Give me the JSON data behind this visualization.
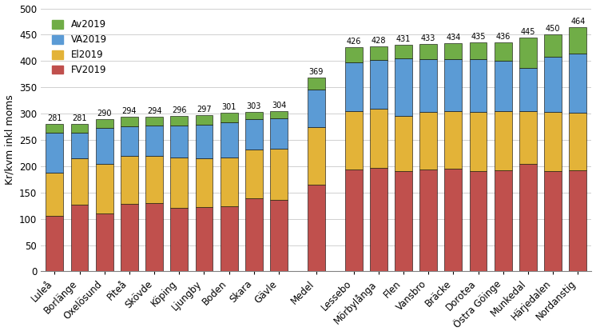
{
  "categories": [
    "Luleå",
    "Borlänge",
    "Oxelösund",
    "Piteå",
    "Skövde",
    "Köping",
    "Ljungby",
    "Boden",
    "Skara",
    "Gävle",
    "Medel",
    "Lessebo",
    "Mörbylånga",
    "Flen",
    "Vansbro",
    "Bräcke",
    "Dorotea",
    "Östra Göinge",
    "Munkedal",
    "Härjedalen",
    "Nordanstig"
  ],
  "totals": [
    281,
    281,
    290,
    294,
    294,
    296,
    297,
    301,
    303,
    304,
    369,
    426,
    428,
    431,
    433,
    434,
    435,
    436,
    445,
    450,
    464
  ],
  "FV2019": [
    105,
    127,
    110,
    128,
    130,
    120,
    122,
    124,
    139,
    136,
    165,
    193,
    197,
    190,
    193,
    195,
    191,
    192,
    205,
    191,
    192
  ],
  "El2019": [
    83,
    88,
    95,
    91,
    90,
    96,
    93,
    93,
    93,
    97,
    110,
    112,
    112,
    106,
    110,
    110,
    112,
    112,
    100,
    112,
    110
  ],
  "VA2019": [
    75,
    48,
    68,
    57,
    58,
    62,
    64,
    67,
    58,
    58,
    71,
    93,
    93,
    109,
    100,
    98,
    100,
    97,
    82,
    105,
    112
  ],
  "Av2019": [
    18,
    18,
    17,
    18,
    16,
    18,
    18,
    17,
    13,
    13,
    23,
    28,
    26,
    26,
    30,
    31,
    32,
    35,
    58,
    42,
    50
  ],
  "colors": {
    "FV2019": "#c0504d",
    "El2019": "#e3b338",
    "VA2019": "#5b9bd5",
    "Av2019": "#70ad47"
  },
  "ylabel": "Kr/kvm inkl moms",
  "ylim": [
    0,
    500
  ],
  "yticks": [
    0,
    50,
    100,
    150,
    200,
    250,
    300,
    350,
    400,
    450,
    500
  ],
  "medel_index": 10,
  "background_color": "#ffffff",
  "grid_color": "#d0d0d0"
}
